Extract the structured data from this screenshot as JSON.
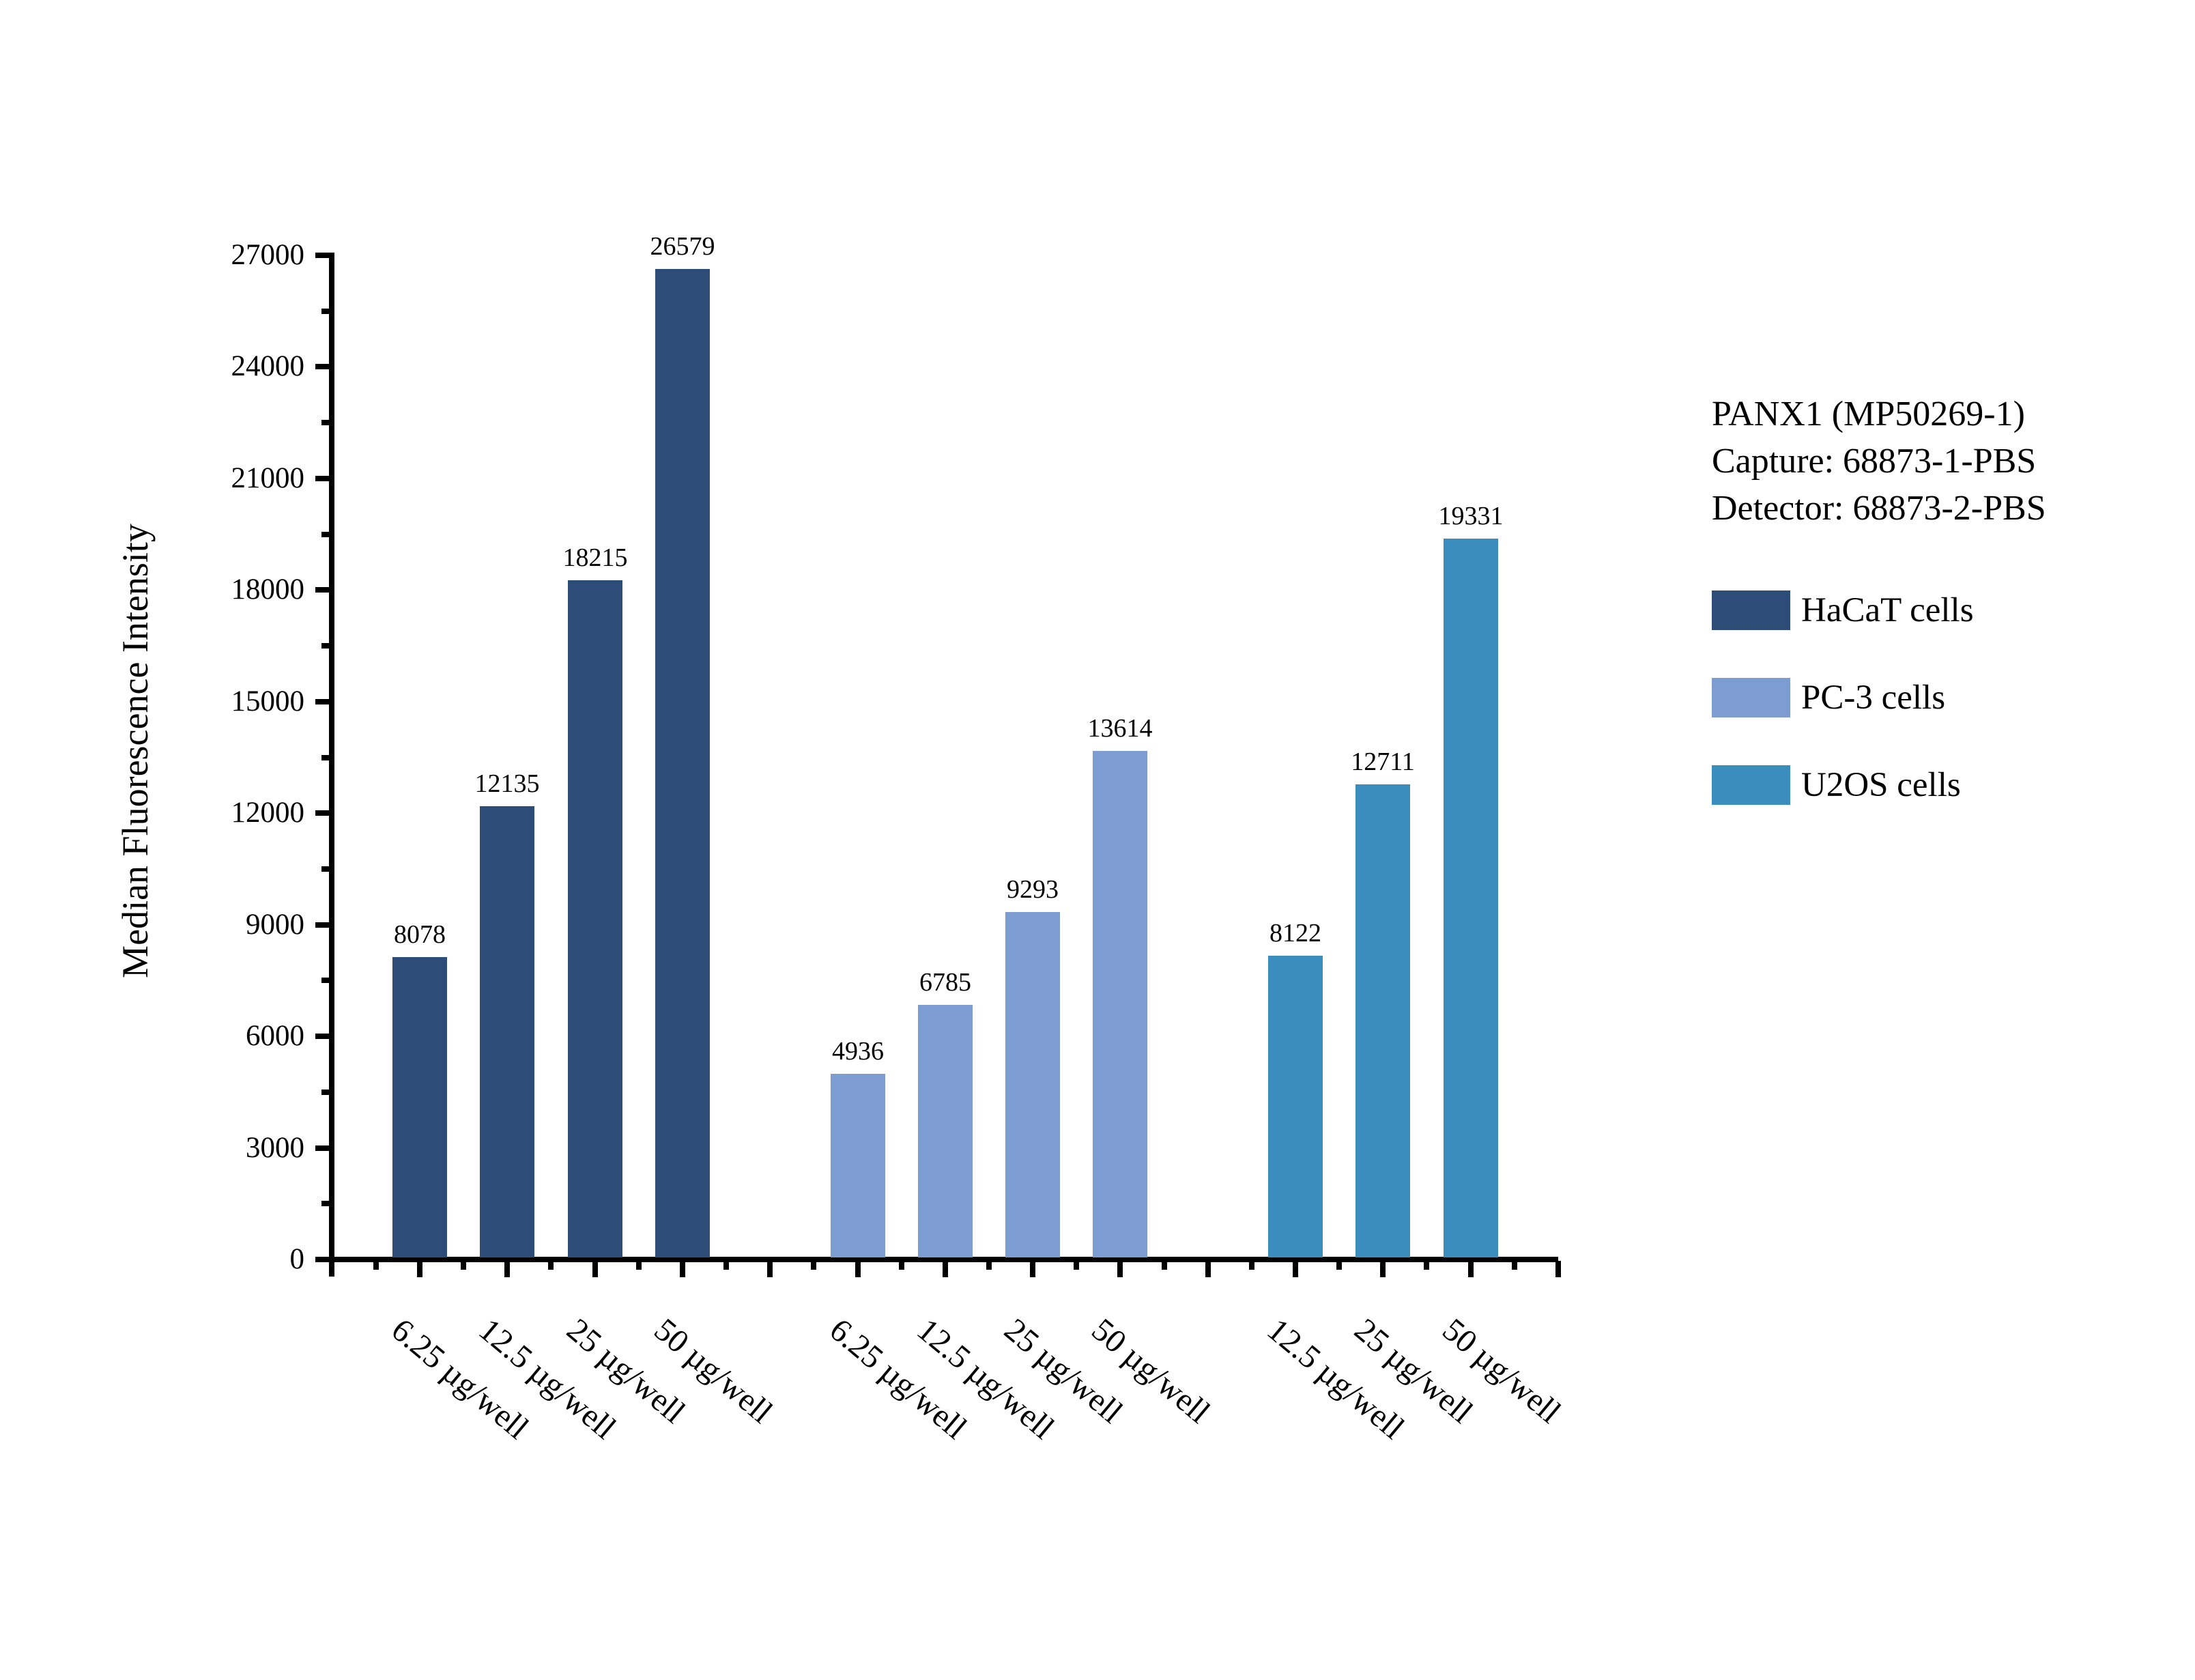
{
  "chart_data": {
    "type": "bar",
    "title": "",
    "xlabel": "",
    "ylabel": "Median Fluorescence Intensity",
    "ylim": [
      0,
      27000
    ],
    "y_major_step": 3000,
    "y_minor_step": 1500,
    "grid": false,
    "legend_position": "right",
    "y_tick_labels": [
      "0",
      "3000",
      "6000",
      "9000",
      "12000",
      "15000",
      "18000",
      "21000",
      "24000",
      "27000"
    ],
    "series": [
      {
        "name": "HaCaT cells",
        "color": "#2E4C78",
        "categories": [
          "6.25 µg/well",
          "12.5 µg/well",
          "25 µg/well",
          "50 µg/well"
        ],
        "values": [
          8078,
          12135,
          18215,
          26579
        ]
      },
      {
        "name": "PC-3 cells",
        "color": "#7D9DD2",
        "categories": [
          "6.25 µg/well",
          "12.5 µg/well",
          "25 µg/well",
          "50 µg/well"
        ],
        "values": [
          4936,
          6785,
          9293,
          13614
        ]
      },
      {
        "name": "U2OS cells",
        "color": "#3B8DBE",
        "categories": [
          "12.5 µg/well",
          "25 µg/well",
          "50 µg/well"
        ],
        "values": [
          8122,
          12711,
          19331
        ]
      }
    ],
    "annotation": [
      "PANX1 (MP50269-1)",
      "Capture: 68873-1-PBS",
      "Detector: 68873-2-PBS"
    ],
    "legend": [
      {
        "label": "HaCaT cells",
        "color": "#2E4C78"
      },
      {
        "label": "PC-3 cells",
        "color": "#7D9DD2"
      },
      {
        "label": "U2OS cells",
        "color": "#3B8DBE"
      }
    ]
  }
}
